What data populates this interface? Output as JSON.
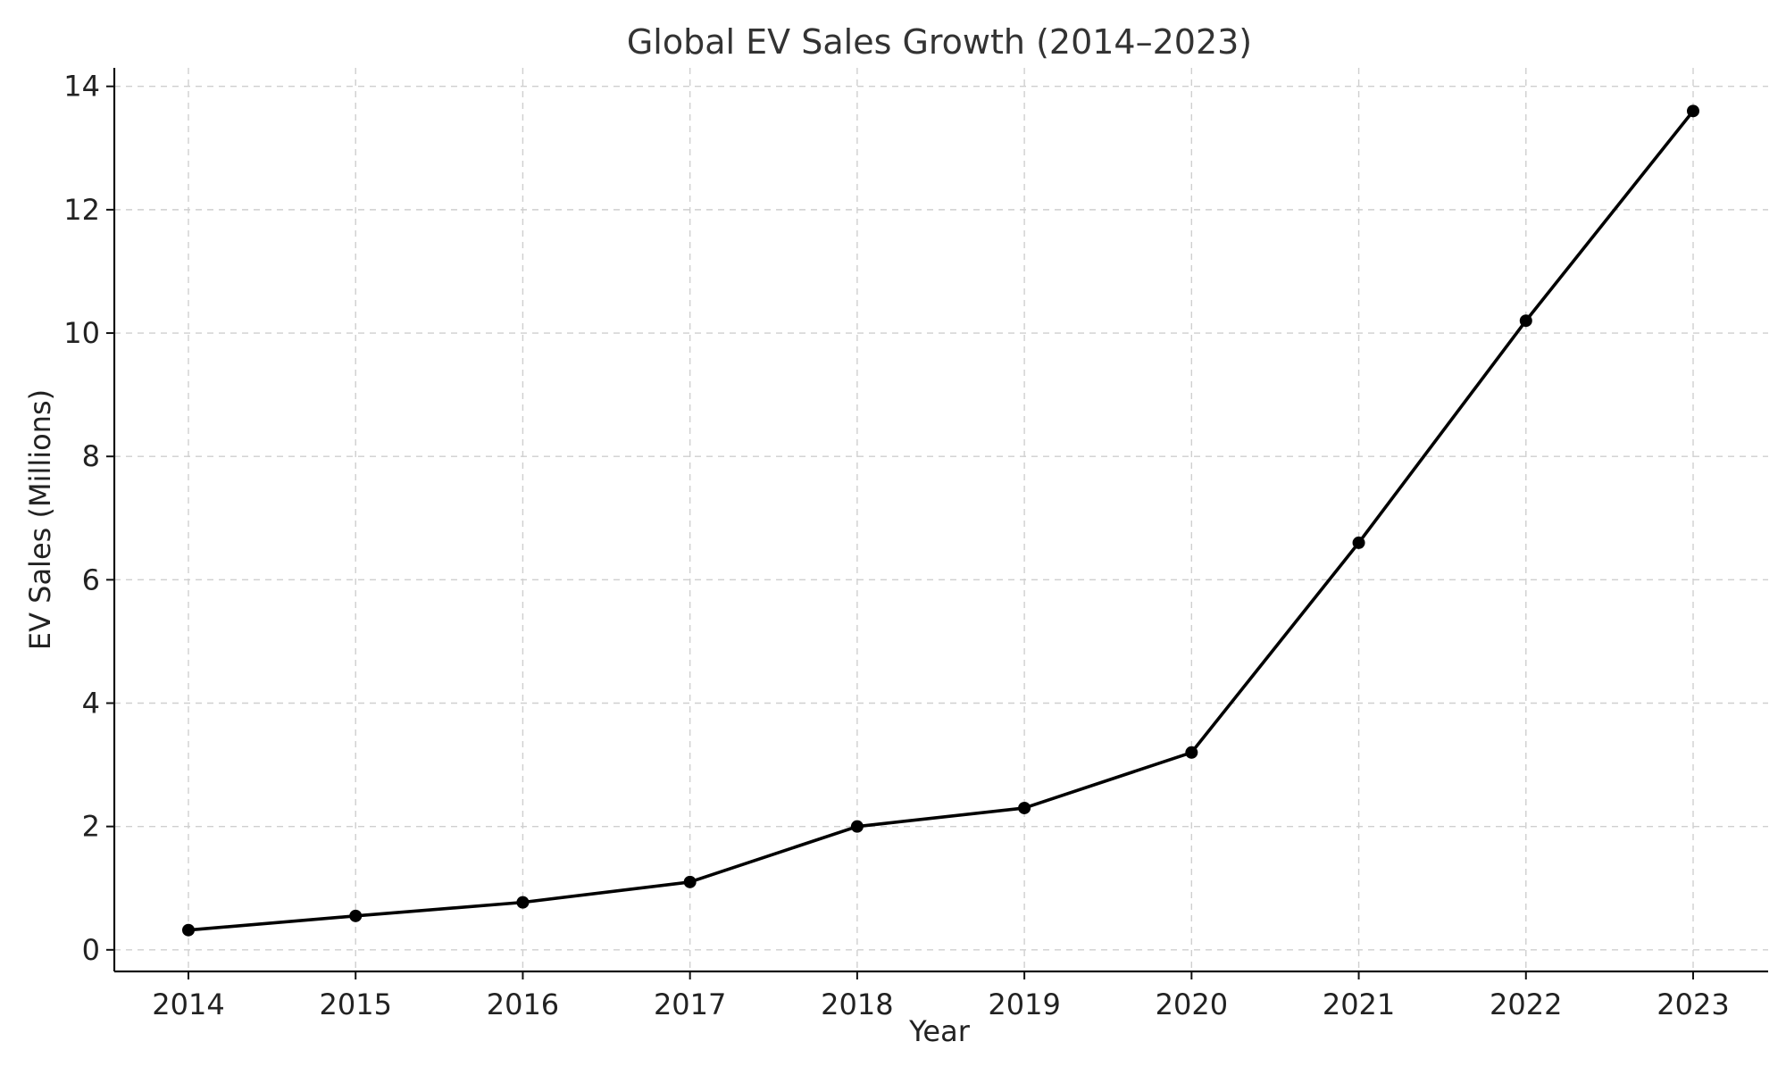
{
  "chart_data": {
    "type": "line",
    "title": "Global EV Sales Growth (2014–2023)",
    "xlabel": "Year",
    "ylabel": "EV Sales (Millions)",
    "x": [
      "2014",
      "2015",
      "2016",
      "2017",
      "2018",
      "2019",
      "2020",
      "2021",
      "2022",
      "2023"
    ],
    "y_ticks": [
      "0",
      "2",
      "4",
      "6",
      "8",
      "10",
      "12",
      "14"
    ],
    "series": [
      {
        "values": [
          0.32,
          0.55,
          0.77,
          1.1,
          2.0,
          2.3,
          3.2,
          6.6,
          10.2,
          13.6
        ]
      }
    ],
    "ylim": [
      -0.35,
      14.3
    ],
    "grid": true,
    "colors": {
      "line": "#000000",
      "grid": "#cfcfcf",
      "text": "#222222"
    }
  }
}
